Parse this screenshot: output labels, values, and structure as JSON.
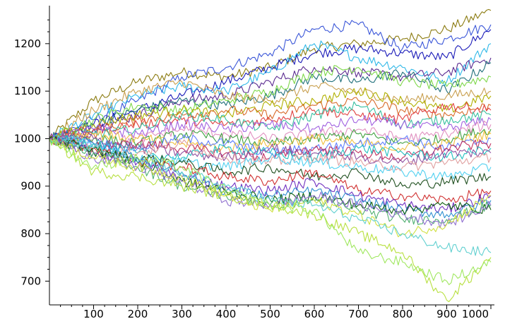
{
  "chart_data": {
    "type": "line",
    "title": "",
    "xlabel": "",
    "ylabel": "",
    "xlim": [
      0,
      1000
    ],
    "ylim": [
      650,
      1280
    ],
    "x_ticks": [
      100,
      200,
      300,
      400,
      500,
      600,
      700,
      800,
      900,
      1000
    ],
    "x_tick_labels": [
      "100",
      "200",
      "300",
      "400",
      "500",
      "600",
      "700",
      "800",
      "900",
      "1000"
    ],
    "y_ticks": [
      700,
      800,
      900,
      1000,
      1100,
      1200
    ],
    "y_tick_labels": [
      "700",
      "800",
      "900",
      "1000",
      "1100",
      "1200"
    ],
    "grid": false,
    "legend": "none",
    "x": [
      0,
      100,
      200,
      300,
      400,
      500,
      600,
      700,
      800,
      900,
      1000
    ],
    "series": [
      {
        "color": "#8b7b10",
        "values": [
          1000,
          1080,
          1120,
          1140,
          1130,
          1150,
          1190,
          1200,
          1210,
          1230,
          1270
        ]
      },
      {
        "color": "#3a56d8",
        "values": [
          1000,
          1040,
          1080,
          1130,
          1150,
          1180,
          1230,
          1240,
          1190,
          1210,
          1240
        ]
      },
      {
        "color": "#1a1ab8",
        "values": [
          1000,
          1030,
          1060,
          1090,
          1120,
          1150,
          1180,
          1190,
          1180,
          1170,
          1230
        ]
      },
      {
        "color": "#2fb8e8",
        "values": [
          1000,
          1050,
          1090,
          1110,
          1100,
          1140,
          1200,
          1170,
          1150,
          1120,
          1200
        ]
      },
      {
        "color": "#5a2a90",
        "values": [
          1000,
          1020,
          1050,
          1080,
          1090,
          1120,
          1150,
          1140,
          1130,
          1140,
          1170
        ]
      },
      {
        "color": "#1f6f7a",
        "values": [
          1000,
          1030,
          1060,
          1080,
          1070,
          1090,
          1130,
          1120,
          1140,
          1100,
          1160
        ]
      },
      {
        "color": "#7ed84a",
        "values": [
          1000,
          1040,
          1070,
          1060,
          1080,
          1100,
          1140,
          1150,
          1120,
          1110,
          1130
        ]
      },
      {
        "color": "#c9a050",
        "values": [
          1000,
          1060,
          1100,
          1120,
          1090,
          1080,
          1110,
          1100,
          1080,
          1090,
          1100
        ]
      },
      {
        "color": "#b0b000",
        "values": [
          1000,
          1030,
          1050,
          1060,
          1050,
          1070,
          1080,
          1100,
          1080,
          1060,
          1090
        ]
      },
      {
        "color": "#d86a2a",
        "values": [
          1000,
          1010,
          1040,
          1050,
          1060,
          1050,
          1070,
          1080,
          1060,
          1050,
          1070
        ]
      },
      {
        "color": "#e04040",
        "values": [
          1000,
          1020,
          1030,
          1040,
          1030,
          1040,
          1060,
          1050,
          1040,
          1070,
          1060
        ]
      },
      {
        "color": "#38c0a0",
        "values": [
          1000,
          1010,
          1020,
          1050,
          1040,
          1020,
          1050,
          1070,
          1030,
          1040,
          1050
        ]
      },
      {
        "color": "#a060e0",
        "values": [
          1000,
          1020,
          1010,
          1030,
          1020,
          1030,
          1020,
          1040,
          1030,
          1020,
          1040
        ]
      },
      {
        "color": "#e090c0",
        "values": [
          1000,
          990,
          1000,
          1020,
          1010,
          1000,
          1010,
          1020,
          1000,
          1010,
          1030
        ]
      },
      {
        "color": "#40a040",
        "values": [
          1000,
          1000,
          990,
          1010,
          1000,
          990,
          1000,
          1010,
          990,
          1000,
          1020
        ]
      },
      {
        "color": "#f0c040",
        "values": [
          1000,
          1010,
          1000,
          990,
          980,
          990,
          1000,
          990,
          980,
          990,
          1010
        ]
      },
      {
        "color": "#6080ff",
        "values": [
          1000,
          990,
          980,
          1000,
          990,
          970,
          980,
          990,
          1000,
          980,
          1000
        ]
      },
      {
        "color": "#c03060",
        "values": [
          1000,
          980,
          990,
          980,
          970,
          960,
          980,
          970,
          960,
          980,
          990
        ]
      },
      {
        "color": "#20c0c0",
        "values": [
          1000,
          990,
          970,
          960,
          980,
          970,
          960,
          980,
          970,
          960,
          980
        ]
      },
      {
        "color": "#9050a0",
        "values": [
          1000,
          1000,
          980,
          970,
          960,
          980,
          970,
          960,
          950,
          970,
          970
        ]
      },
      {
        "color": "#e0a0a0",
        "values": [
          1000,
          980,
          970,
          990,
          960,
          950,
          960,
          950,
          940,
          950,
          960
        ]
      },
      {
        "color": "#50d0f0",
        "values": [
          1000,
          990,
          960,
          950,
          940,
          960,
          950,
          940,
          930,
          920,
          940
        ]
      },
      {
        "color": "#205020",
        "values": [
          1000,
          970,
          960,
          950,
          930,
          940,
          920,
          930,
          900,
          910,
          920
        ]
      },
      {
        "color": "#d03030",
        "values": [
          1000,
          980,
          950,
          940,
          920,
          910,
          930,
          890,
          880,
          870,
          890
        ]
      },
      {
        "color": "#7030c0",
        "values": [
          1000,
          970,
          950,
          920,
          900,
          890,
          910,
          880,
          860,
          850,
          880
        ]
      },
      {
        "color": "#3090d0",
        "values": [
          1000,
          990,
          960,
          930,
          890,
          880,
          890,
          870,
          850,
          840,
          870
        ]
      },
      {
        "color": "#106010",
        "values": [
          1000,
          980,
          950,
          910,
          890,
          870,
          880,
          860,
          850,
          860,
          850
        ]
      },
      {
        "color": "#50b070",
        "values": [
          1000,
          970,
          940,
          900,
          880,
          860,
          870,
          850,
          830,
          830,
          860
        ]
      },
      {
        "color": "#9070d0",
        "values": [
          1000,
          960,
          940,
          910,
          870,
          860,
          880,
          860,
          840,
          820,
          860
        ]
      },
      {
        "color": "#d0e040",
        "values": [
          1000,
          960,
          940,
          920,
          880,
          850,
          870,
          840,
          800,
          820,
          880
        ]
      },
      {
        "color": "#60d0d0",
        "values": [
          1000,
          980,
          950,
          930,
          900,
          870,
          860,
          830,
          800,
          770,
          760
        ]
      },
      {
        "color": "#b8e040",
        "values": [
          1000,
          930,
          920,
          900,
          880,
          860,
          840,
          800,
          760,
          660,
          750
        ]
      },
      {
        "color": "#a0e860",
        "values": [
          1000,
          940,
          960,
          940,
          890,
          860,
          850,
          760,
          740,
          700,
          740
        ]
      }
    ]
  }
}
